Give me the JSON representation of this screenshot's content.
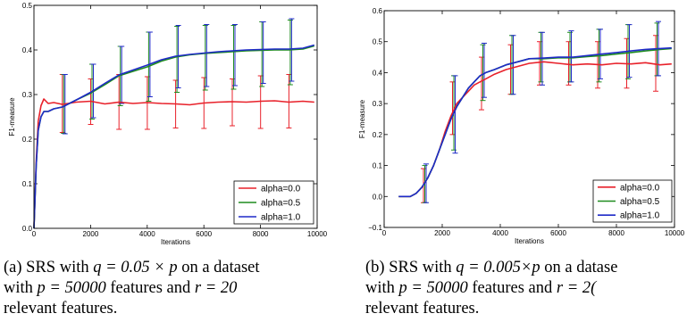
{
  "chart_data": [
    {
      "type": "line",
      "xlabel": "Iterations",
      "ylabel": "F1-measure",
      "xlim": [
        0,
        10000
      ],
      "ylim": [
        0.0,
        0.5
      ],
      "xticks": [
        "0",
        "2000",
        "4000",
        "6000",
        "8000",
        "10000"
      ],
      "yticks": [
        "0.0",
        "0.1",
        "0.2",
        "0.3",
        "0.4",
        "0.5"
      ],
      "xtick_values": [
        0,
        2000,
        4000,
        6000,
        8000,
        10000
      ],
      "ytick_values": [
        0.0,
        0.1,
        0.2,
        0.3,
        0.4,
        0.5
      ],
      "legend_position": "bottom-right",
      "series": [
        {
          "name": "alpha=0.0",
          "color": "#e8212a",
          "x": [
            0,
            80,
            150,
            250,
            350,
            500,
            700,
            1000,
            1500,
            2000,
            2500,
            3000,
            3500,
            4000,
            4500,
            5000,
            5500,
            6000,
            6500,
            7000,
            7500,
            8000,
            8500,
            9000,
            9500,
            9900
          ],
          "y": [
            0.0,
            0.15,
            0.24,
            0.275,
            0.29,
            0.28,
            0.282,
            0.278,
            0.283,
            0.285,
            0.279,
            0.283,
            0.28,
            0.282,
            0.28,
            0.279,
            0.277,
            0.281,
            0.283,
            0.284,
            0.283,
            0.285,
            0.286,
            0.283,
            0.285,
            0.283
          ],
          "errorbars": [
            {
              "x": 1050,
              "low": 0.215,
              "high": 0.345
            },
            {
              "x": 2050,
              "low": 0.233,
              "high": 0.335
            },
            {
              "x": 3050,
              "low": 0.222,
              "high": 0.345
            },
            {
              "x": 4050,
              "low": 0.222,
              "high": 0.34
            },
            {
              "x": 5050,
              "low": 0.225,
              "high": 0.332
            },
            {
              "x": 6050,
              "low": 0.224,
              "high": 0.338
            },
            {
              "x": 7050,
              "low": 0.23,
              "high": 0.335
            },
            {
              "x": 8050,
              "low": 0.224,
              "high": 0.342
            },
            {
              "x": 9050,
              "low": 0.225,
              "high": 0.345
            }
          ]
        },
        {
          "name": "alpha=0.5",
          "color": "#1f8c1f",
          "x": [
            0,
            80,
            150,
            250,
            350,
            500,
            700,
            1000,
            1500,
            2000,
            2500,
            3000,
            3500,
            4000,
            4500,
            5000,
            5500,
            6000,
            6500,
            7000,
            7500,
            8000,
            8500,
            9000,
            9500,
            9900
          ],
          "y": [
            0.0,
            0.14,
            0.22,
            0.25,
            0.262,
            0.262,
            0.268,
            0.272,
            0.288,
            0.303,
            0.322,
            0.342,
            0.352,
            0.362,
            0.375,
            0.384,
            0.389,
            0.392,
            0.394,
            0.396,
            0.398,
            0.399,
            0.4,
            0.4,
            0.402,
            0.409
          ],
          "errorbars": [
            {
              "x": 1050,
              "low": 0.213,
              "high": 0.345
            },
            {
              "x": 2050,
              "low": 0.245,
              "high": 0.368
            },
            {
              "x": 3050,
              "low": 0.275,
              "high": 0.408
            },
            {
              "x": 4050,
              "low": 0.285,
              "high": 0.44
            },
            {
              "x": 5050,
              "low": 0.305,
              "high": 0.453
            },
            {
              "x": 6050,
              "low": 0.31,
              "high": 0.455
            },
            {
              "x": 7050,
              "low": 0.312,
              "high": 0.455
            },
            {
              "x": 8050,
              "low": 0.318,
              "high": 0.463
            },
            {
              "x": 9050,
              "low": 0.322,
              "high": 0.467
            }
          ]
        },
        {
          "name": "alpha=1.0",
          "color": "#1f2ac8",
          "x": [
            0,
            80,
            150,
            250,
            350,
            500,
            700,
            1000,
            1500,
            2000,
            2500,
            3000,
            3500,
            4000,
            4500,
            5000,
            5500,
            6000,
            6500,
            7000,
            7500,
            8000,
            8500,
            9000,
            9500,
            9900
          ],
          "y": [
            0.0,
            0.14,
            0.22,
            0.25,
            0.262,
            0.262,
            0.268,
            0.272,
            0.288,
            0.305,
            0.325,
            0.344,
            0.355,
            0.366,
            0.378,
            0.386,
            0.39,
            0.393,
            0.396,
            0.398,
            0.4,
            0.401,
            0.402,
            0.402,
            0.404,
            0.411
          ],
          "errorbars": [
            {
              "x": 1050,
              "low": 0.212,
              "high": 0.345
            },
            {
              "x": 2050,
              "low": 0.248,
              "high": 0.368
            },
            {
              "x": 3050,
              "low": 0.28,
              "high": 0.408
            },
            {
              "x": 4050,
              "low": 0.295,
              "high": 0.44
            },
            {
              "x": 5050,
              "low": 0.315,
              "high": 0.455
            },
            {
              "x": 6050,
              "low": 0.318,
              "high": 0.457
            },
            {
              "x": 7050,
              "low": 0.32,
              "high": 0.457
            },
            {
              "x": 8050,
              "low": 0.325,
              "high": 0.463
            },
            {
              "x": 9050,
              "low": 0.33,
              "high": 0.47
            }
          ]
        }
      ]
    },
    {
      "type": "line",
      "xlabel": "Iterations",
      "ylabel": "F1-measure",
      "xlim": [
        0,
        10000
      ],
      "ylim": [
        -0.1,
        0.6
      ],
      "xticks": [
        "0",
        "2000",
        "4000",
        "6000",
        "8000",
        "10000"
      ],
      "yticks": [
        "−0.1",
        "0.0",
        "0.1",
        "0.2",
        "0.3",
        "0.4",
        "0.5",
        "0.6"
      ],
      "xtick_values": [
        0,
        2000,
        4000,
        6000,
        8000,
        10000
      ],
      "ytick_values": [
        -0.1,
        0.0,
        0.1,
        0.2,
        0.3,
        0.4,
        0.5,
        0.6
      ],
      "legend_position": "bottom-right",
      "series": [
        {
          "name": "alpha=0.0",
          "color": "#e8212a",
          "x": [
            500,
            700,
            900,
            1100,
            1300,
            1500,
            1700,
            1900,
            2100,
            2300,
            2500,
            2700,
            2900,
            3100,
            3300,
            3500,
            3800,
            4200,
            4600,
            5000,
            5500,
            6000,
            6500,
            7000,
            7500,
            8000,
            8500,
            9000,
            9500,
            9900
          ],
          "y": [
            0.0,
            0.0,
            0.0,
            0.01,
            0.03,
            0.06,
            0.1,
            0.15,
            0.21,
            0.26,
            0.3,
            0.32,
            0.34,
            0.36,
            0.37,
            0.38,
            0.395,
            0.41,
            0.42,
            0.43,
            0.435,
            0.43,
            0.425,
            0.428,
            0.425,
            0.43,
            0.428,
            0.432,
            0.425,
            0.428
          ],
          "errorbars": [
            {
              "x": 1400,
              "low": -0.02,
              "high": 0.09
            },
            {
              "x": 2400,
              "low": 0.2,
              "high": 0.37
            },
            {
              "x": 3400,
              "low": 0.28,
              "high": 0.45
            },
            {
              "x": 4400,
              "low": 0.33,
              "high": 0.49
            },
            {
              "x": 5400,
              "low": 0.36,
              "high": 0.5
            },
            {
              "x": 6400,
              "low": 0.36,
              "high": 0.5
            },
            {
              "x": 7400,
              "low": 0.35,
              "high": 0.5
            },
            {
              "x": 8400,
              "low": 0.35,
              "high": 0.51
            },
            {
              "x": 9400,
              "low": 0.34,
              "high": 0.52
            }
          ]
        },
        {
          "name": "alpha=0.5",
          "color": "#1f8c1f",
          "x": [
            500,
            700,
            900,
            1100,
            1300,
            1500,
            1700,
            1900,
            2100,
            2300,
            2500,
            2700,
            2900,
            3100,
            3300,
            3500,
            3800,
            4200,
            4600,
            5000,
            5500,
            6000,
            6500,
            7000,
            7500,
            8000,
            8500,
            9000,
            9500,
            9900
          ],
          "y": [
            0.0,
            0.0,
            0.0,
            0.01,
            0.03,
            0.06,
            0.1,
            0.15,
            0.2,
            0.25,
            0.29,
            0.32,
            0.35,
            0.37,
            0.39,
            0.4,
            0.41,
            0.425,
            0.435,
            0.445,
            0.445,
            0.448,
            0.448,
            0.452,
            0.455,
            0.46,
            0.465,
            0.47,
            0.475,
            0.478
          ],
          "errorbars": [
            {
              "x": 1400,
              "low": -0.02,
              "high": 0.1
            },
            {
              "x": 2400,
              "low": 0.15,
              "high": 0.39
            },
            {
              "x": 3400,
              "low": 0.31,
              "high": 0.49
            },
            {
              "x": 4400,
              "low": 0.33,
              "high": 0.52
            },
            {
              "x": 5400,
              "low": 0.37,
              "high": 0.53
            },
            {
              "x": 6400,
              "low": 0.37,
              "high": 0.53
            },
            {
              "x": 7400,
              "low": 0.37,
              "high": 0.54
            },
            {
              "x": 8400,
              "low": 0.38,
              "high": 0.555
            },
            {
              "x": 9400,
              "low": 0.39,
              "high": 0.56
            }
          ]
        },
        {
          "name": "alpha=1.0",
          "color": "#1f2ac8",
          "x": [
            500,
            700,
            900,
            1100,
            1300,
            1500,
            1700,
            1900,
            2100,
            2300,
            2500,
            2700,
            2900,
            3100,
            3300,
            3500,
            3800,
            4200,
            4600,
            5000,
            5500,
            6000,
            6500,
            7000,
            7500,
            8000,
            8500,
            9000,
            9500,
            9900
          ],
          "y": [
            0.0,
            0.0,
            0.0,
            0.01,
            0.03,
            0.06,
            0.1,
            0.15,
            0.2,
            0.25,
            0.29,
            0.32,
            0.35,
            0.37,
            0.39,
            0.4,
            0.41,
            0.425,
            0.435,
            0.445,
            0.447,
            0.45,
            0.45,
            0.455,
            0.46,
            0.465,
            0.47,
            0.475,
            0.478,
            0.48
          ],
          "errorbars": [
            {
              "x": 1400,
              "low": -0.02,
              "high": 0.105
            },
            {
              "x": 2400,
              "low": 0.14,
              "high": 0.39
            },
            {
              "x": 3400,
              "low": 0.32,
              "high": 0.495
            },
            {
              "x": 4400,
              "low": 0.33,
              "high": 0.52
            },
            {
              "x": 5400,
              "low": 0.36,
              "high": 0.53
            },
            {
              "x": 6400,
              "low": 0.37,
              "high": 0.535
            },
            {
              "x": 7400,
              "low": 0.38,
              "high": 0.54
            },
            {
              "x": 8400,
              "low": 0.385,
              "high": 0.555
            },
            {
              "x": 9400,
              "low": 0.39,
              "high": 0.565
            }
          ]
        }
      ]
    }
  ],
  "captions": {
    "a": {
      "label": "(a)",
      "text_1": " SRS with ",
      "math_1": "q = 0.05 × p",
      "text_2": " on a dataset",
      "line2_text_1": "with ",
      "math_2": "p = 50000",
      "line2_text_2": " features and ",
      "math_3": "r = 20",
      "line3": "relevant features."
    },
    "b": {
      "label": "(b)",
      "text_1": " SRS with ",
      "math_1": "q = 0.005×p",
      "text_2": " on a datase",
      "line2_text_1": "with ",
      "math_2": "p = 50000",
      "line2_text_2": " features and ",
      "math_3": "r = 2(",
      "line3": "relevant features."
    }
  }
}
